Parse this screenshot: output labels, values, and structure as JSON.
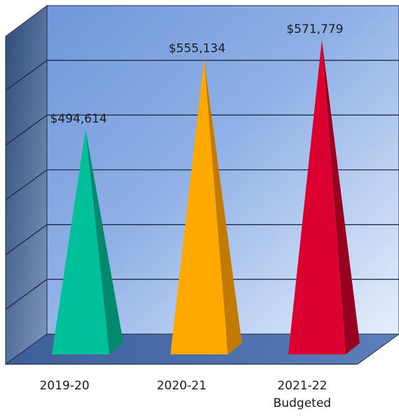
{
  "chart_data": {
    "type": "bar",
    "style": "3d-cone",
    "categories": [
      "2019-20",
      "2020-21",
      "2021-22\nBudgeted"
    ],
    "values": [
      494614,
      555134,
      571779
    ],
    "data_labels": [
      "$494,614",
      "$555,134",
      "$571,779"
    ],
    "title": "",
    "xlabel": "",
    "ylabel": "",
    "ylim": [
      300000,
      600000
    ],
    "grid": true,
    "colors": {
      "series": [
        "#00c09a",
        "#ffa800",
        "#dc0030"
      ],
      "series_dark": [
        "#00896e",
        "#c27a00",
        "#99001f"
      ],
      "wall_light": "#e6eefb",
      "wall_dark": "#6f97da",
      "side_wall": "#3f5f94",
      "floor": "#4a6eaa",
      "grid": "#1e2c44"
    }
  }
}
